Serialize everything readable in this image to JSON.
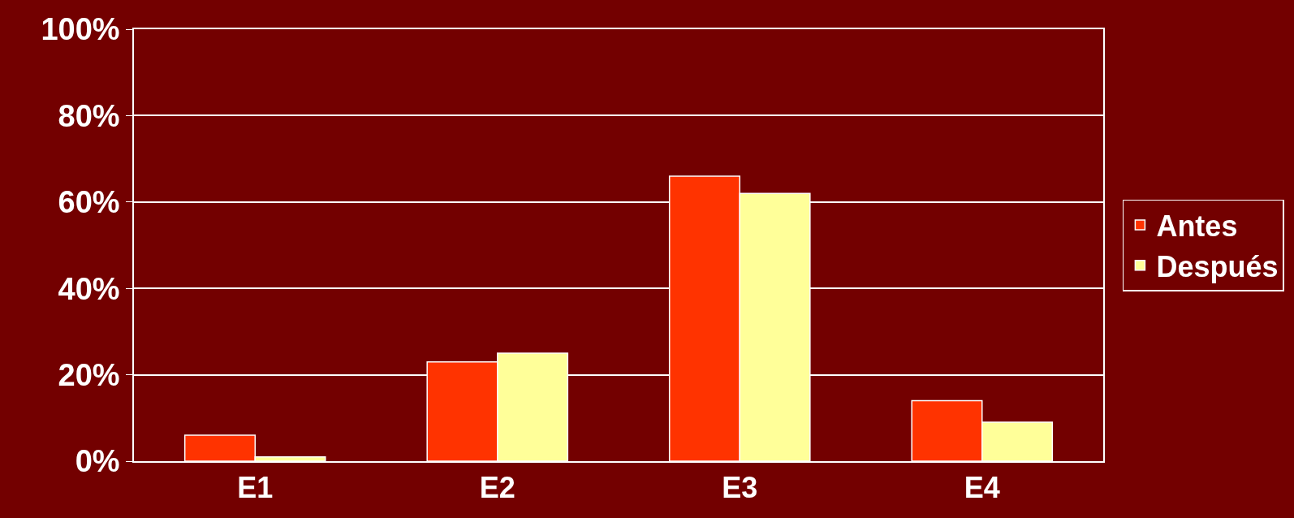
{
  "chart_data": {
    "type": "bar",
    "categories": [
      "E1",
      "E2",
      "E3",
      "E4"
    ],
    "series": [
      {
        "name": "Antes",
        "color": "#ff3300",
        "values": [
          6,
          23,
          66,
          14
        ]
      },
      {
        "name": "Después",
        "color": "#ffff99",
        "values": [
          1,
          25,
          62,
          9
        ]
      }
    ],
    "ylim": [
      0,
      100
    ],
    "yticks": [
      {
        "value": 0,
        "label": "0%"
      },
      {
        "value": 20,
        "label": "20%"
      },
      {
        "value": 40,
        "label": "40%"
      },
      {
        "value": 60,
        "label": "60%"
      },
      {
        "value": 80,
        "label": "80%"
      },
      {
        "value": 100,
        "label": "100%"
      }
    ],
    "grid": "y",
    "legend": "right"
  }
}
